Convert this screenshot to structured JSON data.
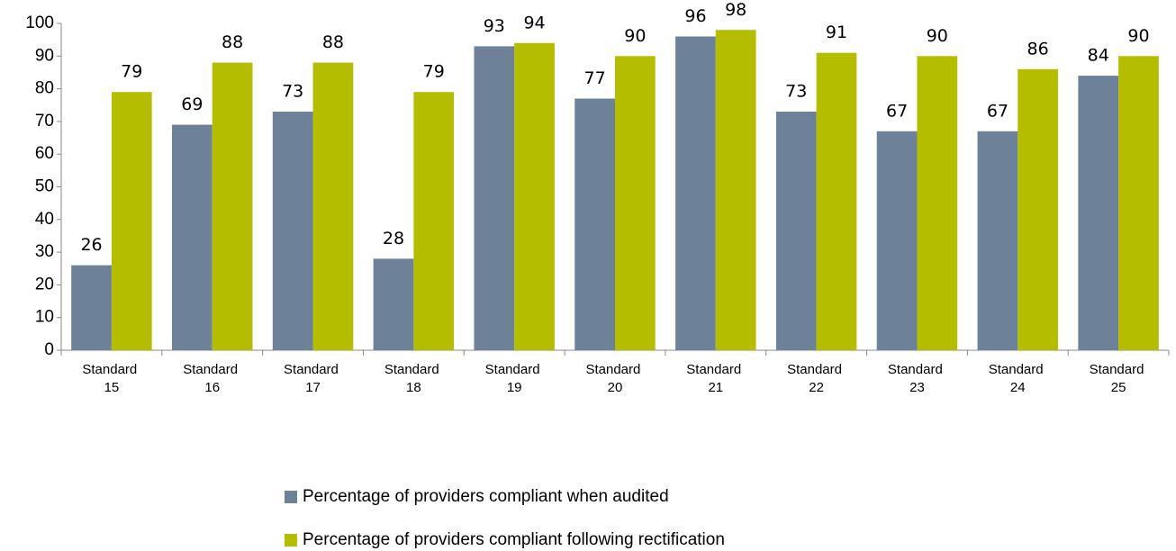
{
  "chart_data": {
    "type": "bar",
    "categories": [
      "Standard 15",
      "Standard 16",
      "Standard 17",
      "Standard 18",
      "Standard 19",
      "Standard 20",
      "Standard 21",
      "Standard 22",
      "Standard 23",
      "Standard 24",
      "Standard 25"
    ],
    "series": [
      {
        "name": "Percentage of providers compliant when audited",
        "color": "#6d8299",
        "values": [
          26,
          69,
          73,
          28,
          93,
          77,
          96,
          73,
          67,
          67,
          84
        ]
      },
      {
        "name": "Percentage of providers compliant following rectification",
        "color": "#b5bd00",
        "values": [
          79,
          88,
          88,
          79,
          94,
          90,
          98,
          91,
          90,
          86,
          90
        ]
      }
    ],
    "ylim": [
      0,
      100
    ],
    "yticks": [
      0,
      10,
      20,
      30,
      40,
      50,
      60,
      70,
      80,
      90,
      100
    ],
    "grid": false
  }
}
